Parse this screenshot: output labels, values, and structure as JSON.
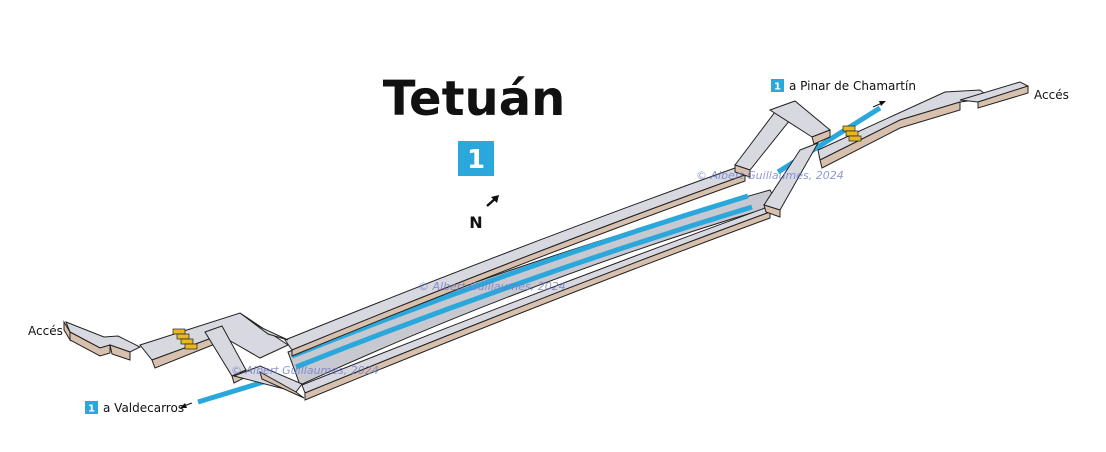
{
  "station": {
    "name": "Tetuán",
    "line": "1",
    "line_color": "#2aa8dc"
  },
  "compass": {
    "label": "N"
  },
  "directions": {
    "north": {
      "line": "1",
      "text": "a Pinar de Chamartín"
    },
    "south": {
      "line": "1",
      "text": "a Valdecarros"
    }
  },
  "accesses": {
    "east": "Accés",
    "west": "Accés"
  },
  "watermark": "© Albert Guillaumes, 2024",
  "colors": {
    "wall_top": "#d8d8e0",
    "wall_side": "#d8c0ae",
    "turnstiles": "#e8b820"
  }
}
